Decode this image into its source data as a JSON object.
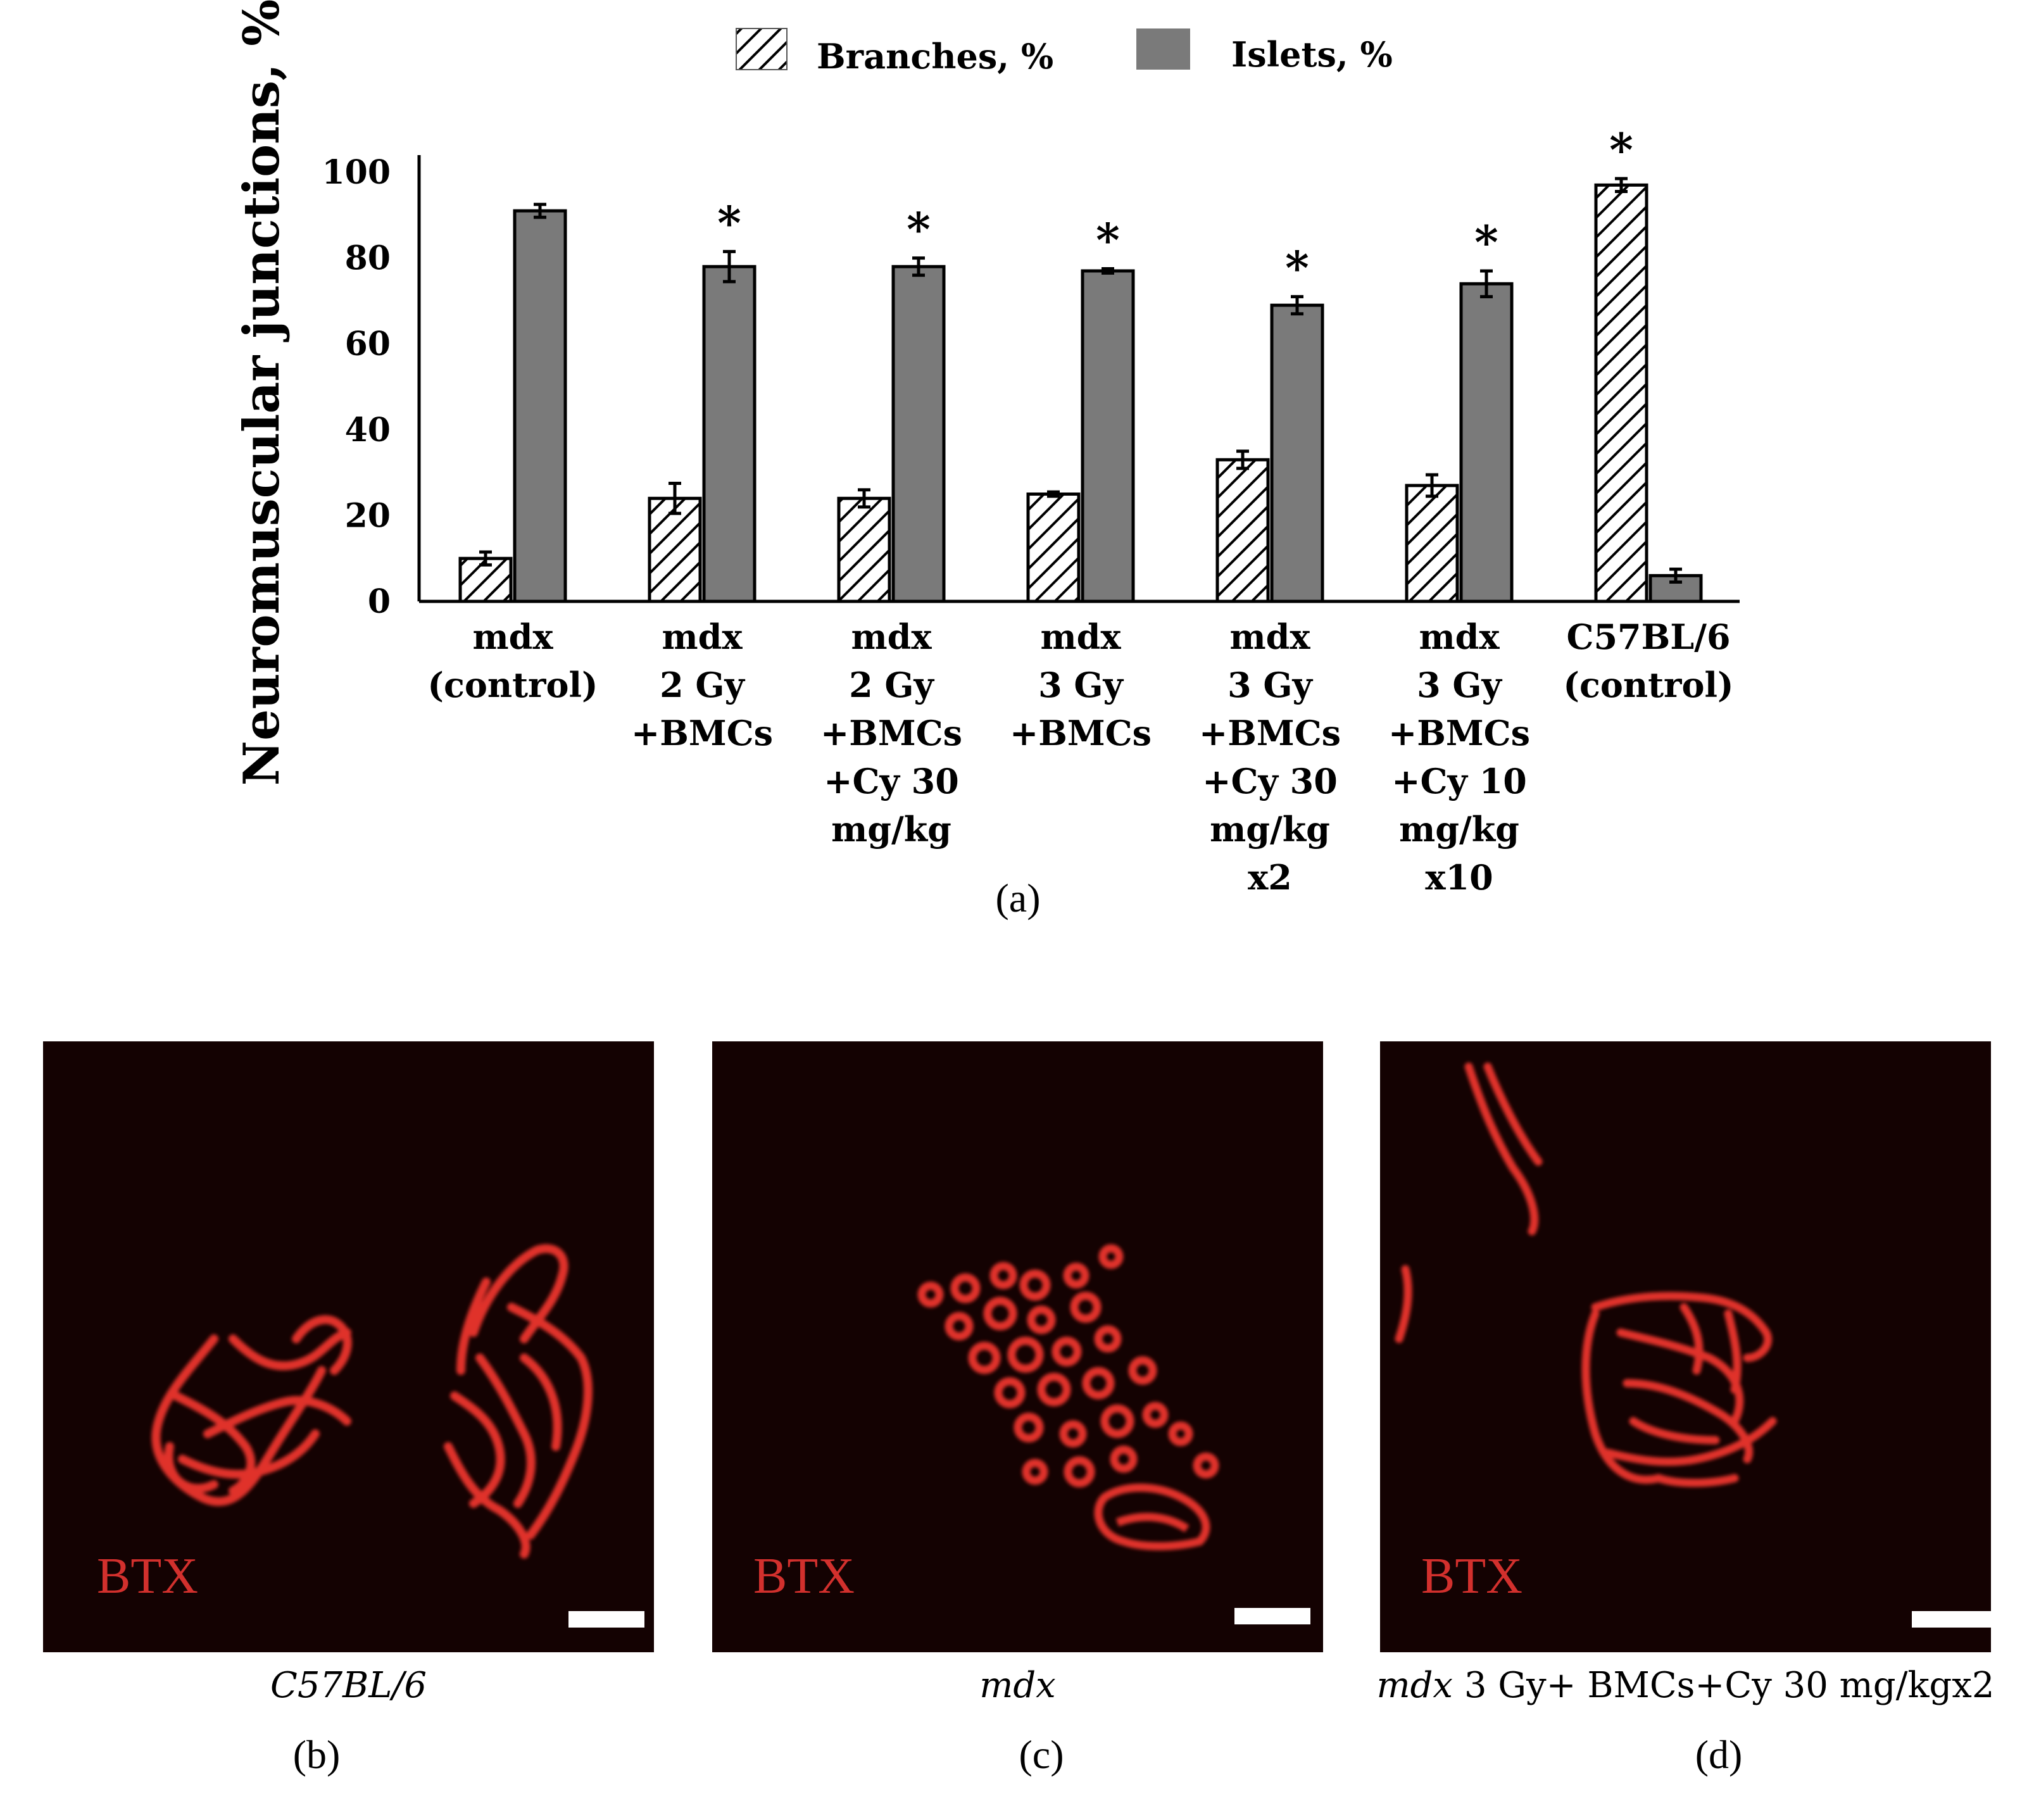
{
  "chart_data": {
    "type": "bar",
    "ylabel": "Neuromuscular junctions, %",
    "ylim": [
      0,
      100
    ],
    "yticks": [
      0,
      20,
      40,
      60,
      80,
      100
    ],
    "legend_placement": "top",
    "categories": [
      [
        "mdx",
        "(control)"
      ],
      [
        "mdx",
        "2 Gy",
        "+BMCs"
      ],
      [
        "mdx",
        "2 Gy",
        "+BMCs",
        "+Cy 30",
        "mg/kg"
      ],
      [
        "mdx",
        "3 Gy",
        "+BMCs"
      ],
      [
        "mdx",
        "3 Gy",
        "+BMCs",
        "+Cy 30",
        "mg/kg",
        "x2"
      ],
      [
        "mdx",
        "3 Gy",
        "+BMCs",
        "+Cy 10",
        "mg/kg",
        "x10"
      ],
      [
        "C57BL/6",
        "(control)"
      ]
    ],
    "series": [
      {
        "name": "Branches, %",
        "pattern": "hatched",
        "values": [
          10,
          24,
          24,
          25,
          33,
          27,
          97
        ],
        "errors": [
          1.5,
          3.5,
          2,
          0.5,
          2,
          2.5,
          1.5
        ]
      },
      {
        "name": "Islets, %",
        "color": "#7a7a7a",
        "values": [
          91,
          78,
          78,
          77,
          69,
          74,
          6
        ],
        "errors": [
          1.5,
          3.5,
          2,
          0.5,
          2,
          3,
          1.5
        ]
      }
    ],
    "significance": [
      "",
      "*",
      "*",
      "*",
      "*",
      "*",
      "*"
    ],
    "panel_label": "(a)"
  },
  "micrographs": [
    {
      "stain": "BTX",
      "caption": "C57BL/6",
      "caption_rest": "",
      "label": "(b)"
    },
    {
      "stain": "BTX",
      "caption": "mdx",
      "caption_rest": "",
      "label": "(c)"
    },
    {
      "stain": "BTX",
      "caption": "mdx",
      "caption_rest": " 3 Gy+ BMCs+Cy 30 mg/kgx2",
      "label": "(d)"
    }
  ],
  "colors": {
    "islets": "#7a7a7a",
    "stain": "#e0302a",
    "background": "#140202"
  }
}
